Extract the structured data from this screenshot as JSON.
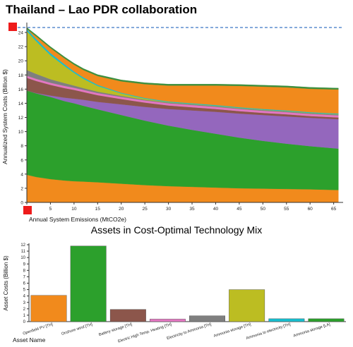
{
  "page": {
    "title": "Thailand – Lao PDR collaboration"
  },
  "controls": {
    "top_marker": {
      "color": "#ee1b1b"
    },
    "bottom_marker": {
      "color": "#ee1b1b"
    }
  },
  "chart_data": [
    {
      "type": "area",
      "title": "",
      "xlabel": "Annual System Emissions (MtCO2e)",
      "ylabel": "Annualized System Costs (Billion $)",
      "xlim": [
        0,
        67
      ],
      "ylim": [
        0,
        25
      ],
      "xticks": [
        0,
        5,
        10,
        15,
        20,
        25,
        30,
        35,
        40,
        45,
        50,
        55,
        60,
        65
      ],
      "yticks": [
        0,
        2,
        4,
        6,
        8,
        10,
        12,
        14,
        16,
        18,
        20,
        22,
        24
      ],
      "reference_line": {
        "y": 24.7,
        "style": "dashed",
        "color": "#3b78c4"
      },
      "x": [
        0,
        2,
        5,
        8,
        10,
        12,
        15,
        20,
        25,
        30,
        35,
        40,
        45,
        50,
        55,
        60,
        66
      ],
      "series": [
        {
          "color": "#f18a1c",
          "values": [
            3.9,
            3.6,
            3.3,
            3.1,
            3.0,
            2.95,
            2.85,
            2.65,
            2.45,
            2.3,
            2.2,
            2.1,
            2.0,
            1.95,
            1.9,
            1.85,
            1.75
          ]
        },
        {
          "color": "#2ca02c",
          "values": [
            11.9,
            11.8,
            11.6,
            11.2,
            11.0,
            10.7,
            10.3,
            9.7,
            9.1,
            8.55,
            8.05,
            7.6,
            7.15,
            6.75,
            6.4,
            6.1,
            5.85
          ]
        },
        {
          "color": "#9467bd",
          "values": [
            0.0,
            0.05,
            0.2,
            0.5,
            0.65,
            0.85,
            1.05,
            1.5,
            1.95,
            2.35,
            2.75,
            3.1,
            3.4,
            3.65,
            3.85,
            4.0,
            4.15
          ]
        },
        {
          "color": "#8c564b",
          "values": [
            1.8,
            1.7,
            1.5,
            1.35,
            1.25,
            1.1,
            0.95,
            0.75,
            0.6,
            0.5,
            0.45,
            0.4,
            0.35,
            0.3,
            0.3,
            0.25,
            0.25
          ]
        },
        {
          "color": "#e377c2",
          "values": [
            0.3,
            0.3,
            0.3,
            0.3,
            0.3,
            0.3,
            0.3,
            0.3,
            0.3,
            0.3,
            0.3,
            0.3,
            0.3,
            0.3,
            0.3,
            0.3,
            0.3
          ]
        },
        {
          "color": "#7f7f7f",
          "values": [
            0.8,
            0.7,
            0.5,
            0.4,
            0.3,
            0.25,
            0.2,
            0.15,
            0.1,
            0.1,
            0.1,
            0.1,
            0.1,
            0.1,
            0.1,
            0.1,
            0.1
          ]
        },
        {
          "color": "#bcbd22",
          "values": [
            5.5,
            4.6,
            3.4,
            2.4,
            1.8,
            1.3,
            0.8,
            0.35,
            0.15,
            0.05,
            0.05,
            0.05,
            0.05,
            0.05,
            0.05,
            0.05,
            0.05
          ]
        },
        {
          "color": "#17becf",
          "values": [
            0.3,
            0.3,
            0.3,
            0.25,
            0.2,
            0.2,
            0.15,
            0.1,
            0.1,
            0.1,
            0.1,
            0.1,
            0.1,
            0.1,
            0.1,
            0.1,
            0.1
          ]
        },
        {
          "color": "#f18a1c",
          "values": [
            0.0,
            0.4,
            0.7,
            0.85,
            0.95,
            1.05,
            1.25,
            1.6,
            1.95,
            2.25,
            2.5,
            2.75,
            3.0,
            3.15,
            3.25,
            3.3,
            3.4
          ]
        },
        {
          "color": "#3d8f3d",
          "values": [
            0.2,
            0.2,
            0.2,
            0.2,
            0.2,
            0.2,
            0.2,
            0.2,
            0.2,
            0.2,
            0.2,
            0.2,
            0.2,
            0.2,
            0.2,
            0.2,
            0.2
          ]
        }
      ]
    },
    {
      "type": "bar",
      "title": "Assets in Cost-Optimal Technology Mix",
      "xlabel": "Asset Name",
      "ylabel": "Asset Costs (Billion $)",
      "ylim": [
        0,
        12
      ],
      "yticks": [
        0,
        1,
        2,
        3,
        4,
        5,
        6,
        7,
        8,
        9,
        10,
        11,
        12
      ],
      "categories": [
        "Openfield PV [TH]",
        "Onshore wind [TH]",
        "Battery storage [TH]",
        "Electric High Temp. Heating [TH]",
        "Electricity to Ammonia [TH]",
        "Ammonia storage [TH]",
        "Ammonia to electricity [TH]",
        "Ammonia storage [LA]"
      ],
      "values": [
        4.1,
        11.8,
        1.9,
        0.4,
        0.9,
        5.0,
        0.45,
        0.45
      ],
      "colors": [
        "#f18a1c",
        "#2ca02c",
        "#8c564b",
        "#e377c2",
        "#7f7f7f",
        "#bcbd22",
        "#17becf",
        "#2ca02c"
      ]
    }
  ]
}
